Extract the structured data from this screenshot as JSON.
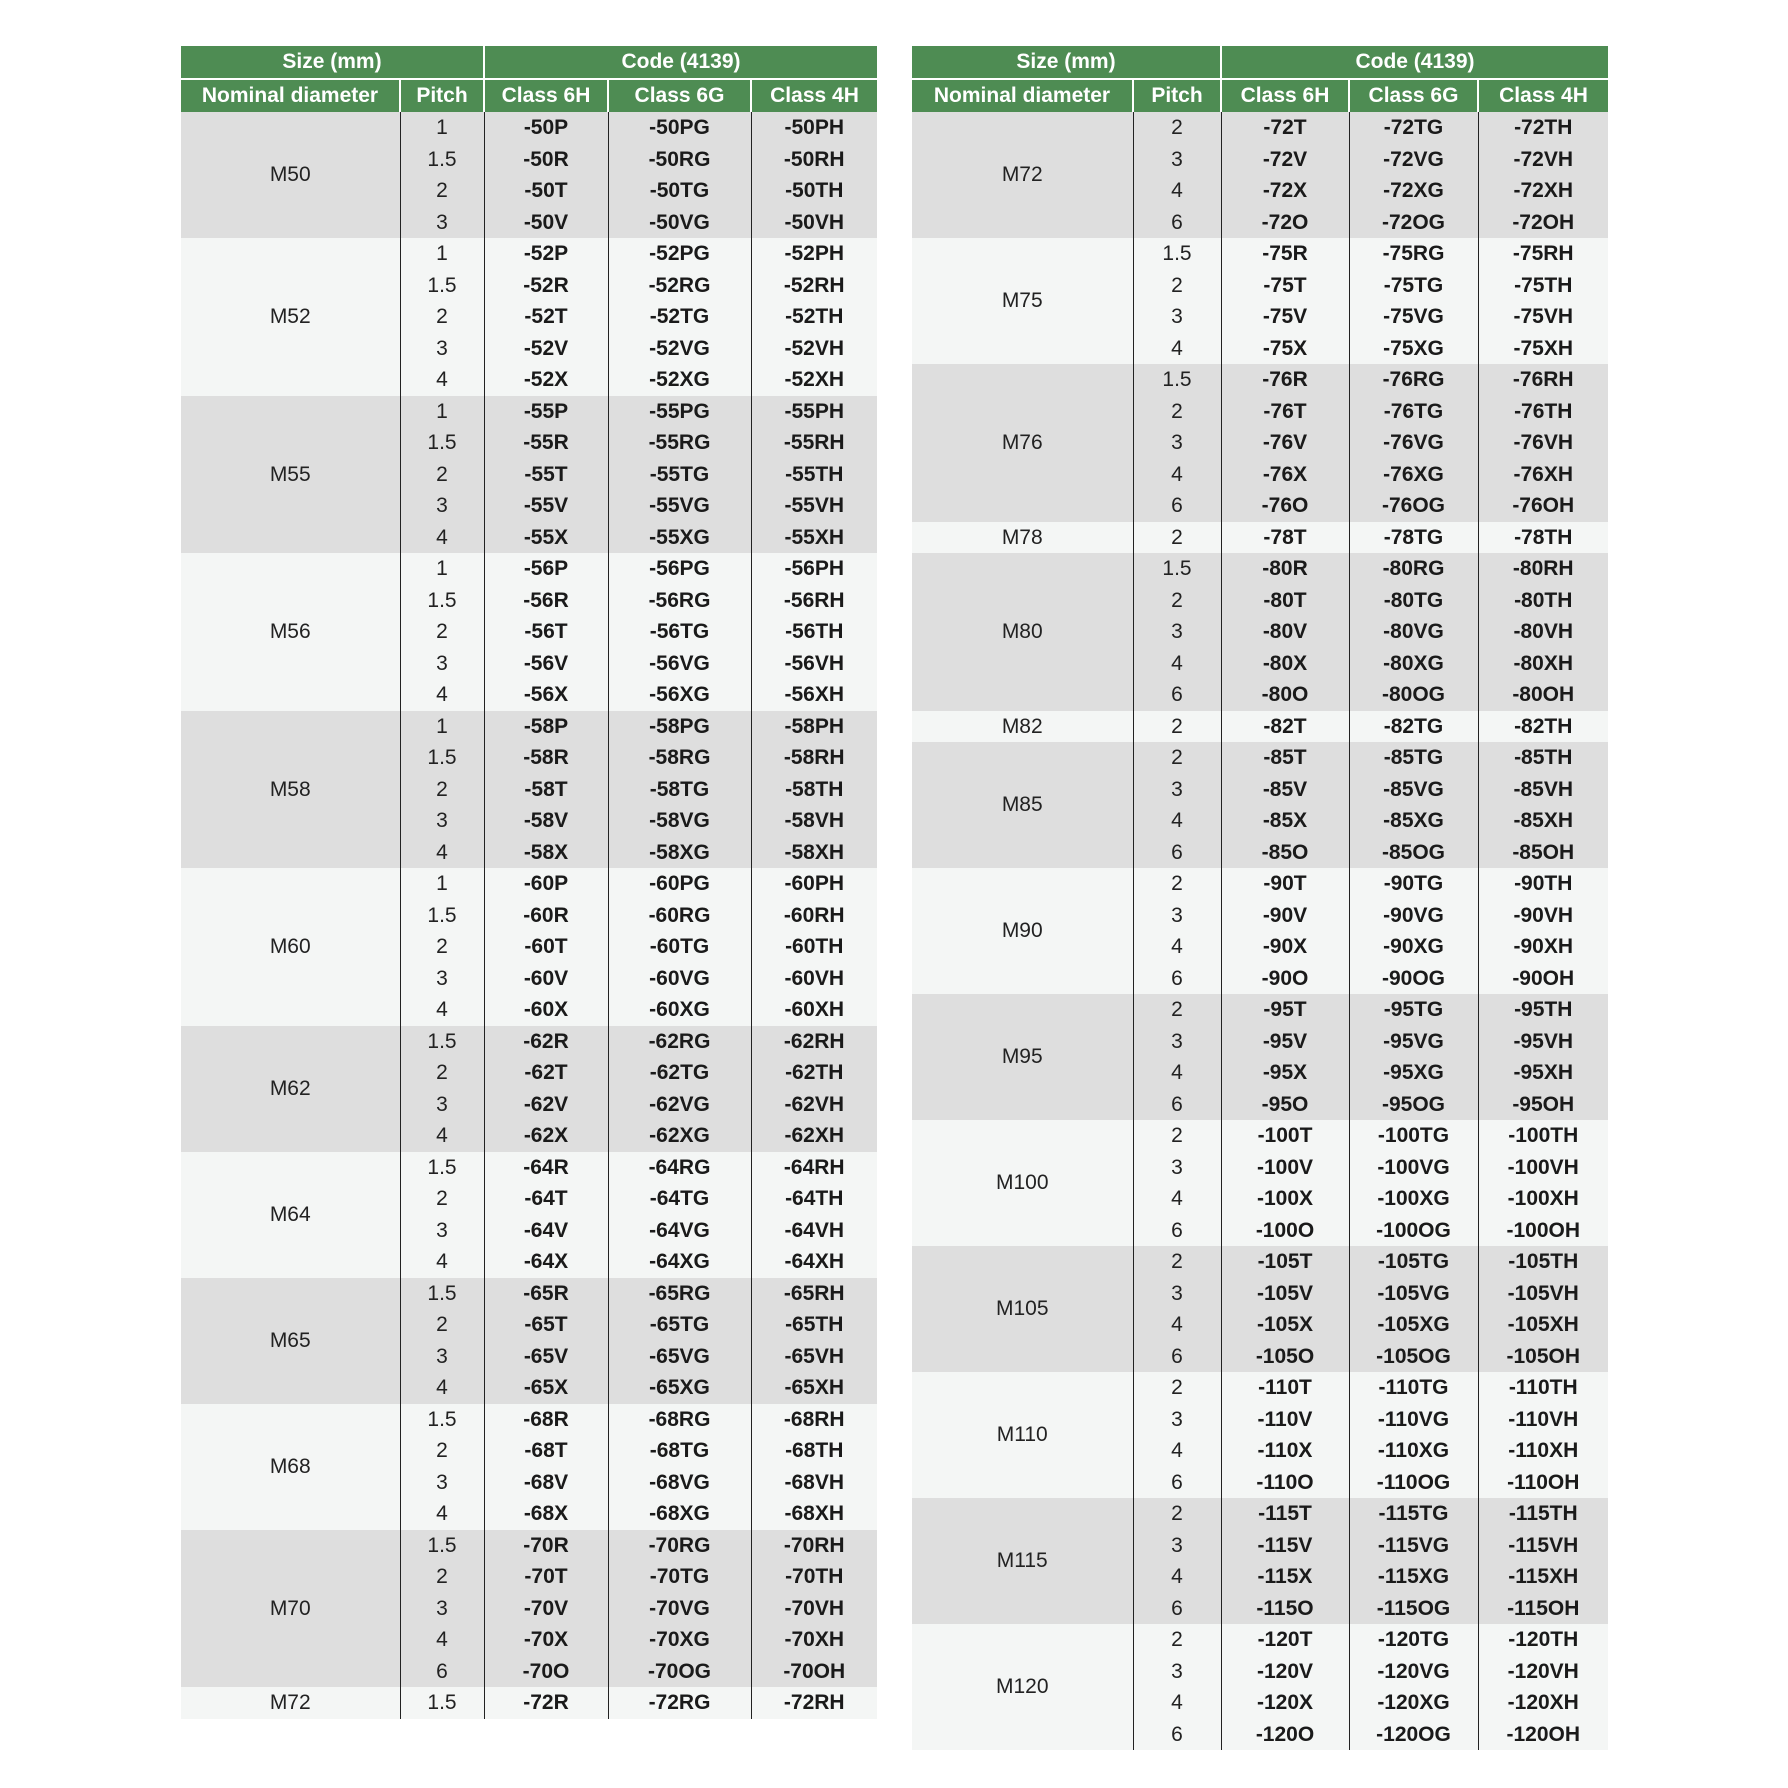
{
  "header": {
    "size_group": "Size (mm)",
    "code_group": "Code (4139)",
    "nominal_diameter": "Nominal diameter",
    "pitch": "Pitch",
    "class_6h": "Class 6H",
    "class_6g": "Class 6G",
    "class_4h": "Class 4H"
  },
  "colors": {
    "header_green": "#4e8c53",
    "row_gray": "#dedede",
    "row_light": "#f4f6f5"
  },
  "tables": [
    {
      "groups": [
        {
          "d": "M50",
          "rows": [
            [
              "1",
              "-50P",
              "-50PG",
              "-50PH"
            ],
            [
              "1.5",
              "-50R",
              "-50RG",
              "-50RH"
            ],
            [
              "2",
              "-50T",
              "-50TG",
              "-50TH"
            ],
            [
              "3",
              "-50V",
              "-50VG",
              "-50VH"
            ]
          ]
        },
        {
          "d": "M52",
          "rows": [
            [
              "1",
              "-52P",
              "-52PG",
              "-52PH"
            ],
            [
              "1.5",
              "-52R",
              "-52RG",
              "-52RH"
            ],
            [
              "2",
              "-52T",
              "-52TG",
              "-52TH"
            ],
            [
              "3",
              "-52V",
              "-52VG",
              "-52VH"
            ],
            [
              "4",
              "-52X",
              "-52XG",
              "-52XH"
            ]
          ]
        },
        {
          "d": "M55",
          "rows": [
            [
              "1",
              "-55P",
              "-55PG",
              "-55PH"
            ],
            [
              "1.5",
              "-55R",
              "-55RG",
              "-55RH"
            ],
            [
              "2",
              "-55T",
              "-55TG",
              "-55TH"
            ],
            [
              "3",
              "-55V",
              "-55VG",
              "-55VH"
            ],
            [
              "4",
              "-55X",
              "-55XG",
              "-55XH"
            ]
          ]
        },
        {
          "d": "M56",
          "rows": [
            [
              "1",
              "-56P",
              "-56PG",
              "-56PH"
            ],
            [
              "1.5",
              "-56R",
              "-56RG",
              "-56RH"
            ],
            [
              "2",
              "-56T",
              "-56TG",
              "-56TH"
            ],
            [
              "3",
              "-56V",
              "-56VG",
              "-56VH"
            ],
            [
              "4",
              "-56X",
              "-56XG",
              "-56XH"
            ]
          ]
        },
        {
          "d": "M58",
          "rows": [
            [
              "1",
              "-58P",
              "-58PG",
              "-58PH"
            ],
            [
              "1.5",
              "-58R",
              "-58RG",
              "-58RH"
            ],
            [
              "2",
              "-58T",
              "-58TG",
              "-58TH"
            ],
            [
              "3",
              "-58V",
              "-58VG",
              "-58VH"
            ],
            [
              "4",
              "-58X",
              "-58XG",
              "-58XH"
            ]
          ]
        },
        {
          "d": "M60",
          "rows": [
            [
              "1",
              "-60P",
              "-60PG",
              "-60PH"
            ],
            [
              "1.5",
              "-60R",
              "-60RG",
              "-60RH"
            ],
            [
              "2",
              "-60T",
              "-60TG",
              "-60TH"
            ],
            [
              "3",
              "-60V",
              "-60VG",
              "-60VH"
            ],
            [
              "4",
              "-60X",
              "-60XG",
              "-60XH"
            ]
          ]
        },
        {
          "d": "M62",
          "rows": [
            [
              "1.5",
              "-62R",
              "-62RG",
              "-62RH"
            ],
            [
              "2",
              "-62T",
              "-62TG",
              "-62TH"
            ],
            [
              "3",
              "-62V",
              "-62VG",
              "-62VH"
            ],
            [
              "4",
              "-62X",
              "-62XG",
              "-62XH"
            ]
          ]
        },
        {
          "d": "M64",
          "rows": [
            [
              "1.5",
              "-64R",
              "-64RG",
              "-64RH"
            ],
            [
              "2",
              "-64T",
              "-64TG",
              "-64TH"
            ],
            [
              "3",
              "-64V",
              "-64VG",
              "-64VH"
            ],
            [
              "4",
              "-64X",
              "-64XG",
              "-64XH"
            ]
          ]
        },
        {
          "d": "M65",
          "rows": [
            [
              "1.5",
              "-65R",
              "-65RG",
              "-65RH"
            ],
            [
              "2",
              "-65T",
              "-65TG",
              "-65TH"
            ],
            [
              "3",
              "-65V",
              "-65VG",
              "-65VH"
            ],
            [
              "4",
              "-65X",
              "-65XG",
              "-65XH"
            ]
          ]
        },
        {
          "d": "M68",
          "rows": [
            [
              "1.5",
              "-68R",
              "-68RG",
              "-68RH"
            ],
            [
              "2",
              "-68T",
              "-68TG",
              "-68TH"
            ],
            [
              "3",
              "-68V",
              "-68VG",
              "-68VH"
            ],
            [
              "4",
              "-68X",
              "-68XG",
              "-68XH"
            ]
          ]
        },
        {
          "d": "M70",
          "rows": [
            [
              "1.5",
              "-70R",
              "-70RG",
              "-70RH"
            ],
            [
              "2",
              "-70T",
              "-70TG",
              "-70TH"
            ],
            [
              "3",
              "-70V",
              "-70VG",
              "-70VH"
            ],
            [
              "4",
              "-70X",
              "-70XG",
              "-70XH"
            ],
            [
              "6",
              "-70O",
              "-70OG",
              "-70OH"
            ]
          ]
        },
        {
          "d": "M72",
          "rows": [
            [
              "1.5",
              "-72R",
              "-72RG",
              "-72RH"
            ]
          ]
        }
      ]
    },
    {
      "groups": [
        {
          "d": "M72",
          "rows": [
            [
              "2",
              "-72T",
              "-72TG",
              "-72TH"
            ],
            [
              "3",
              "-72V",
              "-72VG",
              "-72VH"
            ],
            [
              "4",
              "-72X",
              "-72XG",
              "-72XH"
            ],
            [
              "6",
              "-72O",
              "-72OG",
              "-72OH"
            ]
          ]
        },
        {
          "d": "M75",
          "rows": [
            [
              "1.5",
              "-75R",
              "-75RG",
              "-75RH"
            ],
            [
              "2",
              "-75T",
              "-75TG",
              "-75TH"
            ],
            [
              "3",
              "-75V",
              "-75VG",
              "-75VH"
            ],
            [
              "4",
              "-75X",
              "-75XG",
              "-75XH"
            ]
          ]
        },
        {
          "d": "M76",
          "rows": [
            [
              "1.5",
              "-76R",
              "-76RG",
              "-76RH"
            ],
            [
              "2",
              "-76T",
              "-76TG",
              "-76TH"
            ],
            [
              "3",
              "-76V",
              "-76VG",
              "-76VH"
            ],
            [
              "4",
              "-76X",
              "-76XG",
              "-76XH"
            ],
            [
              "6",
              "-76O",
              "-76OG",
              "-76OH"
            ]
          ]
        },
        {
          "d": "M78",
          "rows": [
            [
              "2",
              "-78T",
              "-78TG",
              "-78TH"
            ]
          ]
        },
        {
          "d": "M80",
          "rows": [
            [
              "1.5",
              "-80R",
              "-80RG",
              "-80RH"
            ],
            [
              "2",
              "-80T",
              "-80TG",
              "-80TH"
            ],
            [
              "3",
              "-80V",
              "-80VG",
              "-80VH"
            ],
            [
              "4",
              "-80X",
              "-80XG",
              "-80XH"
            ],
            [
              "6",
              "-80O",
              "-80OG",
              "-80OH"
            ]
          ]
        },
        {
          "d": "M82",
          "rows": [
            [
              "2",
              "-82T",
              "-82TG",
              "-82TH"
            ]
          ]
        },
        {
          "d": "M85",
          "rows": [
            [
              "2",
              "-85T",
              "-85TG",
              "-85TH"
            ],
            [
              "3",
              "-85V",
              "-85VG",
              "-85VH"
            ],
            [
              "4",
              "-85X",
              "-85XG",
              "-85XH"
            ],
            [
              "6",
              "-85O",
              "-85OG",
              "-85OH"
            ]
          ]
        },
        {
          "d": "M90",
          "rows": [
            [
              "2",
              "-90T",
              "-90TG",
              "-90TH"
            ],
            [
              "3",
              "-90V",
              "-90VG",
              "-90VH"
            ],
            [
              "4",
              "-90X",
              "-90XG",
              "-90XH"
            ],
            [
              "6",
              "-90O",
              "-90OG",
              "-90OH"
            ]
          ]
        },
        {
          "d": "M95",
          "rows": [
            [
              "2",
              "-95T",
              "-95TG",
              "-95TH"
            ],
            [
              "3",
              "-95V",
              "-95VG",
              "-95VH"
            ],
            [
              "4",
              "-95X",
              "-95XG",
              "-95XH"
            ],
            [
              "6",
              "-95O",
              "-95OG",
              "-95OH"
            ]
          ]
        },
        {
          "d": "M100",
          "rows": [
            [
              "2",
              "-100T",
              "-100TG",
              "-100TH"
            ],
            [
              "3",
              "-100V",
              "-100VG",
              "-100VH"
            ],
            [
              "4",
              "-100X",
              "-100XG",
              "-100XH"
            ],
            [
              "6",
              "-100O",
              "-100OG",
              "-100OH"
            ]
          ]
        },
        {
          "d": "M105",
          "rows": [
            [
              "2",
              "-105T",
              "-105TG",
              "-105TH"
            ],
            [
              "3",
              "-105V",
              "-105VG",
              "-105VH"
            ],
            [
              "4",
              "-105X",
              "-105XG",
              "-105XH"
            ],
            [
              "6",
              "-105O",
              "-105OG",
              "-105OH"
            ]
          ]
        },
        {
          "d": "M110",
          "rows": [
            [
              "2",
              "-110T",
              "-110TG",
              "-110TH"
            ],
            [
              "3",
              "-110V",
              "-110VG",
              "-110VH"
            ],
            [
              "4",
              "-110X",
              "-110XG",
              "-110XH"
            ],
            [
              "6",
              "-110O",
              "-110OG",
              "-110OH"
            ]
          ]
        },
        {
          "d": "M115",
          "rows": [
            [
              "2",
              "-115T",
              "-115TG",
              "-115TH"
            ],
            [
              "3",
              "-115V",
              "-115VG",
              "-115VH"
            ],
            [
              "4",
              "-115X",
              "-115XG",
              "-115XH"
            ],
            [
              "6",
              "-115O",
              "-115OG",
              "-115OH"
            ]
          ]
        },
        {
          "d": "M120",
          "rows": [
            [
              "2",
              "-120T",
              "-120TG",
              "-120TH"
            ],
            [
              "3",
              "-120V",
              "-120VG",
              "-120VH"
            ],
            [
              "4",
              "-120X",
              "-120XG",
              "-120XH"
            ],
            [
              "6",
              "-120O",
              "-120OG",
              "-120OH"
            ]
          ]
        }
      ]
    }
  ]
}
